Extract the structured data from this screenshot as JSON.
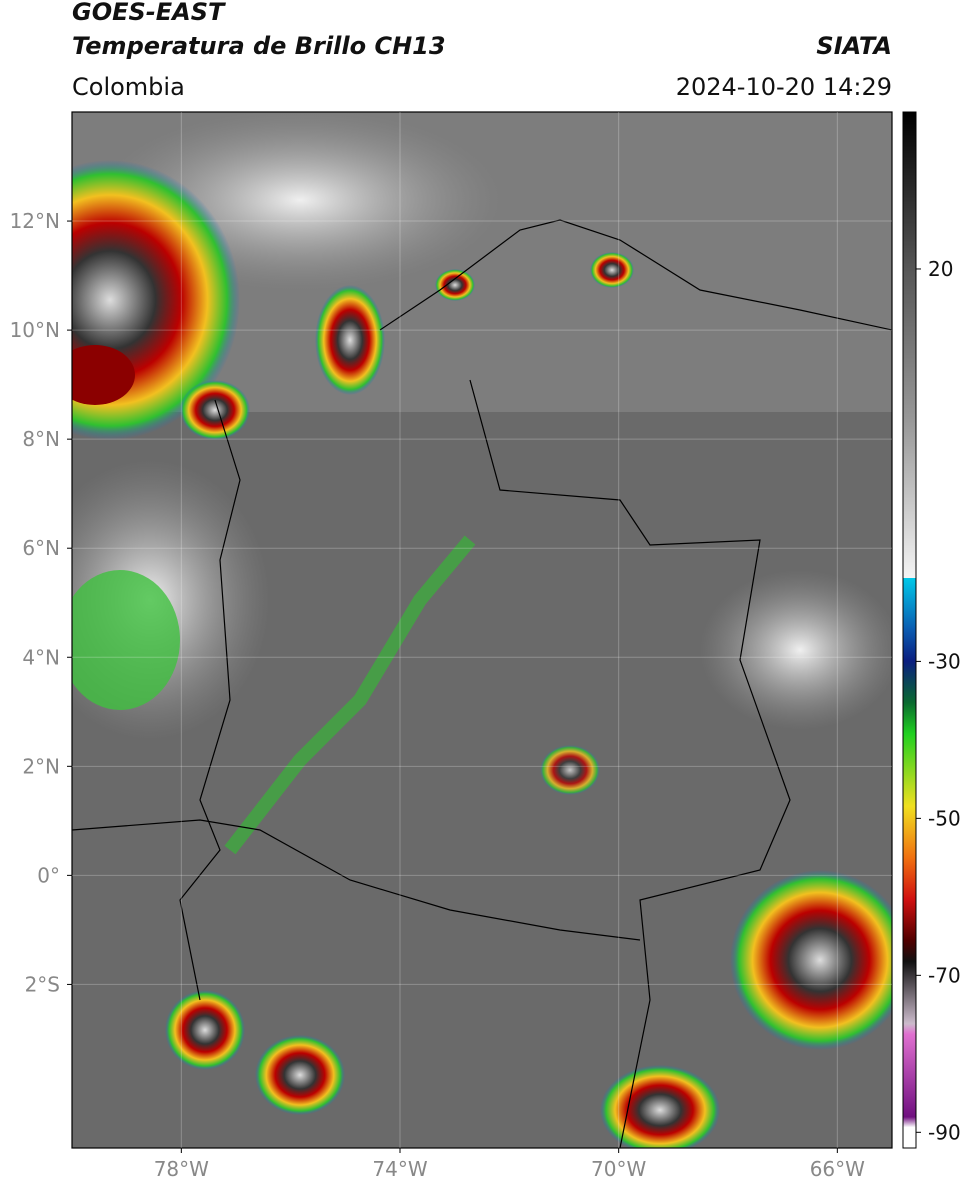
{
  "header": {
    "title": "GOES-EAST",
    "subtitle": "Temperatura de Brillo CH13",
    "region": "Colombia",
    "source": "SIATA",
    "timestamp": "2024-10-20 14:29"
  },
  "map": {
    "xlim": [
      -80,
      -65
    ],
    "ylim": [
      -5,
      14
    ],
    "grid": true,
    "xticks": [
      {
        "value": -78,
        "label": "78°W"
      },
      {
        "value": -74,
        "label": "74°W"
      },
      {
        "value": -70,
        "label": "70°W"
      },
      {
        "value": -66,
        "label": "66°W"
      }
    ],
    "yticks": [
      {
        "value": 12,
        "label": "12°N"
      },
      {
        "value": 10,
        "label": "10°N"
      },
      {
        "value": 8,
        "label": "8°N"
      },
      {
        "value": 6,
        "label": "6°N"
      },
      {
        "value": 4,
        "label": "4°N"
      },
      {
        "value": 2,
        "label": "2°N"
      },
      {
        "value": 0,
        "label": "0°"
      },
      {
        "value": -2,
        "label": "2°S"
      }
    ]
  },
  "colorbar": {
    "lim": [
      -92,
      40
    ],
    "ticks": [
      20,
      -30,
      -50,
      -70,
      -90
    ]
  }
}
